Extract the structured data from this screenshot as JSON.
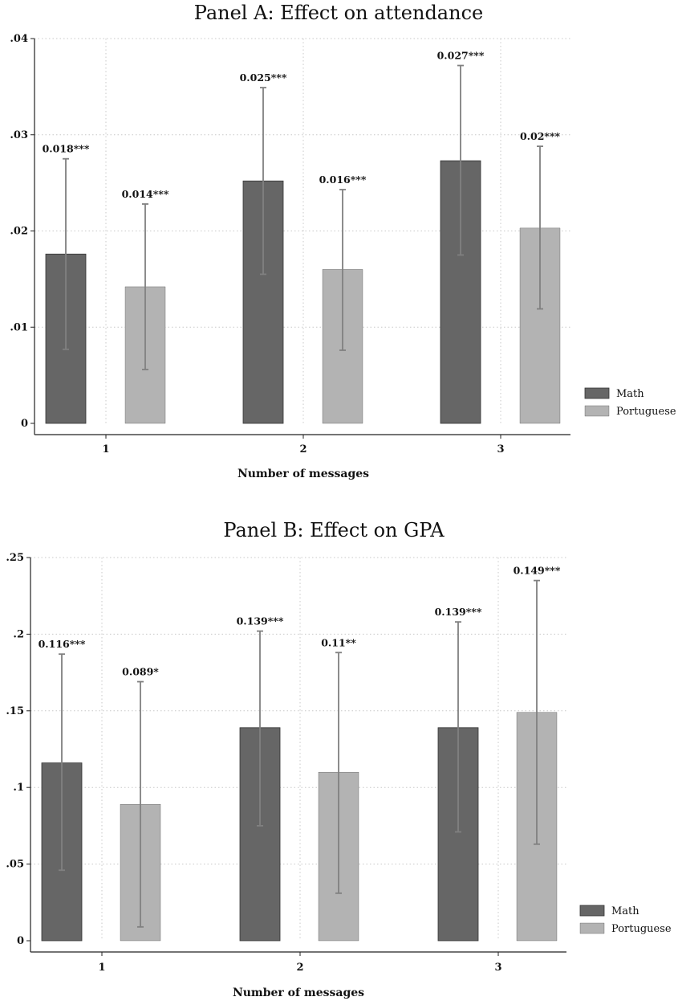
{
  "chart_data": [
    {
      "type": "bar",
      "title": "Panel A: Effect on attendance",
      "xlabel": "Number of messages",
      "ylabel": "",
      "categories": [
        "1",
        "2",
        "3"
      ],
      "ylim": [
        0,
        0.04
      ],
      "yticks": [
        0,
        0.01,
        0.02,
        0.03,
        0.04
      ],
      "ytick_labels": [
        "0",
        ".01",
        ".02",
        ".03",
        ".04"
      ],
      "grid": true,
      "legend_position": "right",
      "series": [
        {
          "name": "Math",
          "color": "#666666",
          "values": [
            0.0176,
            0.0252,
            0.0273
          ],
          "ci_low": [
            0.0077,
            0.0155,
            0.0175
          ],
          "ci_high": [
            0.0275,
            0.0349,
            0.0372
          ],
          "labels": [
            "0.018***",
            "0.025***",
            "0.027***"
          ]
        },
        {
          "name": "Portuguese",
          "color": "#b3b3b3",
          "values": [
            0.0142,
            0.016,
            0.0203
          ],
          "ci_low": [
            0.0056,
            0.0076,
            0.0119
          ],
          "ci_high": [
            0.0228,
            0.0243,
            0.0288
          ],
          "labels": [
            "0.014***",
            "0.016***",
            "0.02***"
          ]
        }
      ]
    },
    {
      "type": "bar",
      "title": "Panel B: Effect on GPA",
      "xlabel": "Number of messages",
      "ylabel": "",
      "categories": [
        "1",
        "2",
        "3"
      ],
      "ylim": [
        0,
        0.25
      ],
      "yticks": [
        0,
        0.05,
        0.1,
        0.15,
        0.2,
        0.25
      ],
      "ytick_labels": [
        "0",
        ".05",
        ".1",
        ".15",
        ".2",
        ".25"
      ],
      "grid": true,
      "legend_position": "right",
      "series": [
        {
          "name": "Math",
          "color": "#666666",
          "values": [
            0.116,
            0.139,
            0.139
          ],
          "ci_low": [
            0.046,
            0.075,
            0.071
          ],
          "ci_high": [
            0.187,
            0.202,
            0.208
          ],
          "labels": [
            "0.116***",
            "0.139***",
            "0.139***"
          ]
        },
        {
          "name": "Portuguese",
          "color": "#b3b3b3",
          "values": [
            0.089,
            0.11,
            0.149
          ],
          "ci_low": [
            0.009,
            0.031,
            0.063
          ],
          "ci_high": [
            0.169,
            0.188,
            0.235
          ],
          "labels": [
            "0.089*",
            "0.11**",
            "0.149***"
          ]
        }
      ]
    }
  ]
}
